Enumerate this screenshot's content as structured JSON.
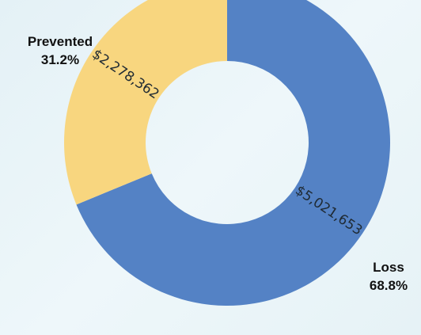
{
  "chart_data": {
    "type": "pie",
    "hole": true,
    "slices": [
      {
        "name": "Loss",
        "value": 5021653,
        "value_label": "$5,021,653",
        "percent_label": "68.8%",
        "color": "#5482c5"
      },
      {
        "name": "Prevented",
        "value": 2278362,
        "value_label": "$2,278,362",
        "percent_label": "31.2%",
        "color": "#f8d67f"
      }
    ]
  }
}
